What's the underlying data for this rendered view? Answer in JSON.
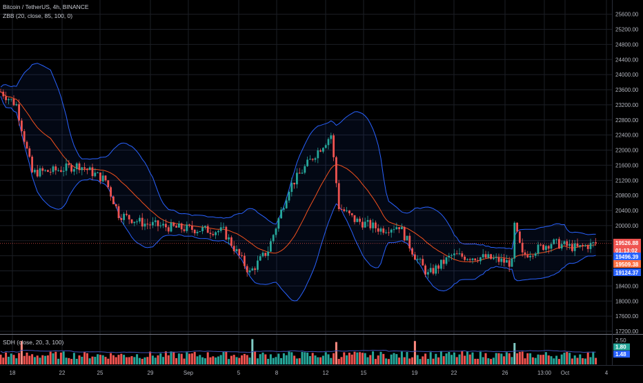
{
  "header": {
    "symbol_line": "Bitcoin / TetherUS, 4h, BINANCE",
    "indicator_line": "ZBB (20, close, 85, 100, 0)"
  },
  "sub_pane": {
    "label": "SDH (close, 20, 3, 100)",
    "ticks": [
      "2.50"
    ],
    "badges": [
      {
        "text": "1.80",
        "color": "#26a69a"
      },
      {
        "text": "1.48",
        "color": "#2962ff"
      }
    ]
  },
  "price_badges": [
    {
      "text": "19526.88",
      "color": "#ef5350"
    },
    {
      "text": "01:13:02",
      "color": "#ef5350"
    },
    {
      "text": "19496.39",
      "color": "#2962ff"
    },
    {
      "text": "19509.38",
      "color": "#ff7043"
    },
    {
      "text": "19124.37",
      "color": "#2962ff"
    }
  ],
  "colors": {
    "up": "#26a69a",
    "down": "#ef5350",
    "band": "#2962ff",
    "basis": "#f4511e",
    "grid": "#1c1f26",
    "volume_line": "#3f51b5"
  },
  "chart_data": {
    "type": "candlestick",
    "title": "Bitcoin / TetherUS, 4h, BINANCE",
    "y_ticks": [
      17200,
      17600,
      18000,
      18400,
      18800,
      19200,
      19600,
      20000,
      20400,
      20800,
      21200,
      21600,
      22000,
      22400,
      22800,
      23200,
      23600,
      24000,
      24400,
      24800,
      25200,
      25600
    ],
    "ylim": [
      17200,
      25850
    ],
    "x_tick_labels": [
      "18",
      "22",
      "25",
      "29",
      "Sep",
      "5",
      "8",
      "12",
      "15",
      "19",
      "22",
      "26",
      "13:00",
      "Oct",
      "4"
    ],
    "price_anchors": [
      {
        "bar": 0,
        "price": 23550
      },
      {
        "bar": 6,
        "price": 23200
      },
      {
        "bar": 12,
        "price": 21400
      },
      {
        "bar": 20,
        "price": 21450
      },
      {
        "bar": 30,
        "price": 21600
      },
      {
        "bar": 40,
        "price": 21200
      },
      {
        "bar": 45,
        "price": 20300
      },
      {
        "bar": 55,
        "price": 20050
      },
      {
        "bar": 65,
        "price": 19950
      },
      {
        "bar": 75,
        "price": 19900
      },
      {
        "bar": 85,
        "price": 19850
      },
      {
        "bar": 90,
        "price": 19300
      },
      {
        "bar": 95,
        "price": 18750
      },
      {
        "bar": 102,
        "price": 19350
      },
      {
        "bar": 110,
        "price": 21000
      },
      {
        "bar": 120,
        "price": 21900
      },
      {
        "bar": 126,
        "price": 22400
      },
      {
        "bar": 129,
        "price": 20500
      },
      {
        "bar": 135,
        "price": 20150
      },
      {
        "bar": 145,
        "price": 19900
      },
      {
        "bar": 152,
        "price": 20000
      },
      {
        "bar": 158,
        "price": 19200
      },
      {
        "bar": 163,
        "price": 18700
      },
      {
        "bar": 172,
        "price": 19200
      },
      {
        "bar": 185,
        "price": 19150
      },
      {
        "bar": 195,
        "price": 19000
      },
      {
        "bar": 196,
        "price": 20000
      },
      {
        "bar": 199,
        "price": 19200
      },
      {
        "bar": 210,
        "price": 19550
      },
      {
        "bar": 220,
        "price": 19400
      },
      {
        "bar": 227,
        "price": 19526
      }
    ],
    "volume_spikes": [
      {
        "bar": 8,
        "value": 2.4
      },
      {
        "bar": 96,
        "value": 2.6
      },
      {
        "bar": 128,
        "value": 2.3
      },
      {
        "bar": 158,
        "value": 2.4
      },
      {
        "bar": 196,
        "value": 2.2
      }
    ],
    "last_price": 19526.88,
    "bb_upper": 19496.39,
    "bb_basis": 19509.38,
    "bb_lower": 19124.37,
    "sdh_values": [
      1.8,
      1.48
    ]
  }
}
